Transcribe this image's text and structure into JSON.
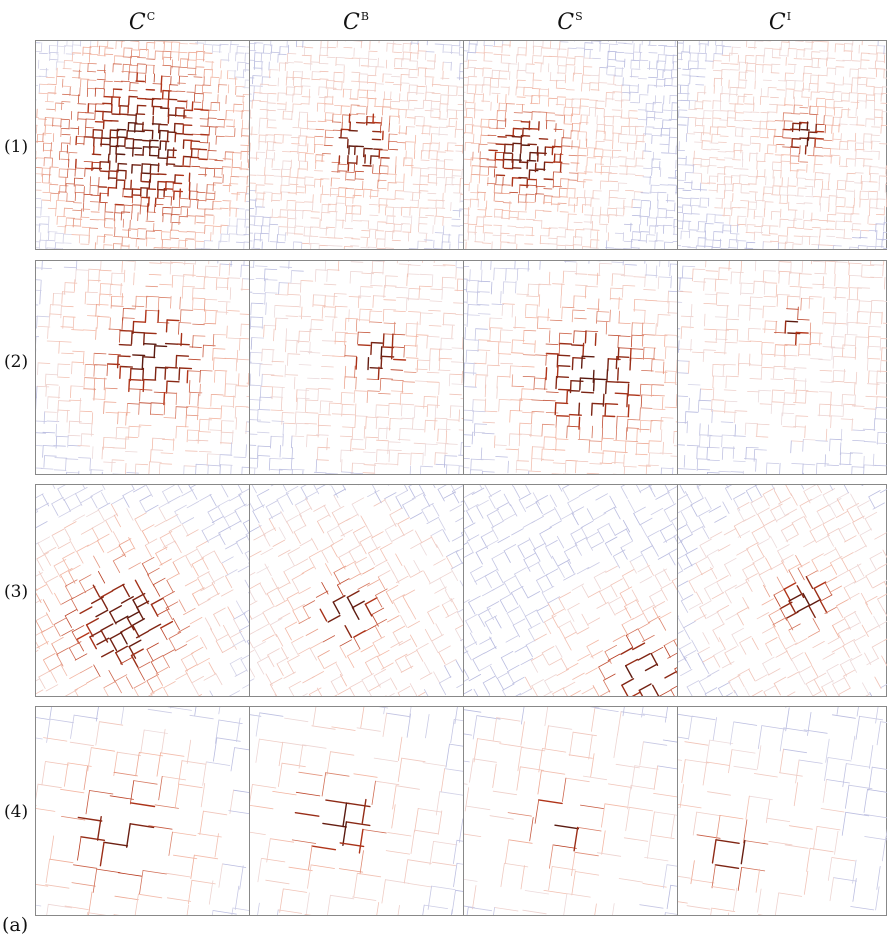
{
  "columns": [
    {
      "symbol": "C",
      "sup": "C"
    },
    {
      "symbol": "C",
      "sup": "B"
    },
    {
      "symbol": "C",
      "sup": "S"
    },
    {
      "symbol": "C",
      "sup": "I"
    }
  ],
  "rows": [
    {
      "label": "(1)"
    },
    {
      "label": "(2)"
    },
    {
      "label": "(3)"
    },
    {
      "label": "(4)"
    }
  ],
  "figure_label": "(a)",
  "colors": {
    "low": "#3b3f8f",
    "low_light": "#b9bce0",
    "high_light": "#f4b7a3",
    "high": "#b5361a",
    "very_high": "#5a1a10"
  }
}
